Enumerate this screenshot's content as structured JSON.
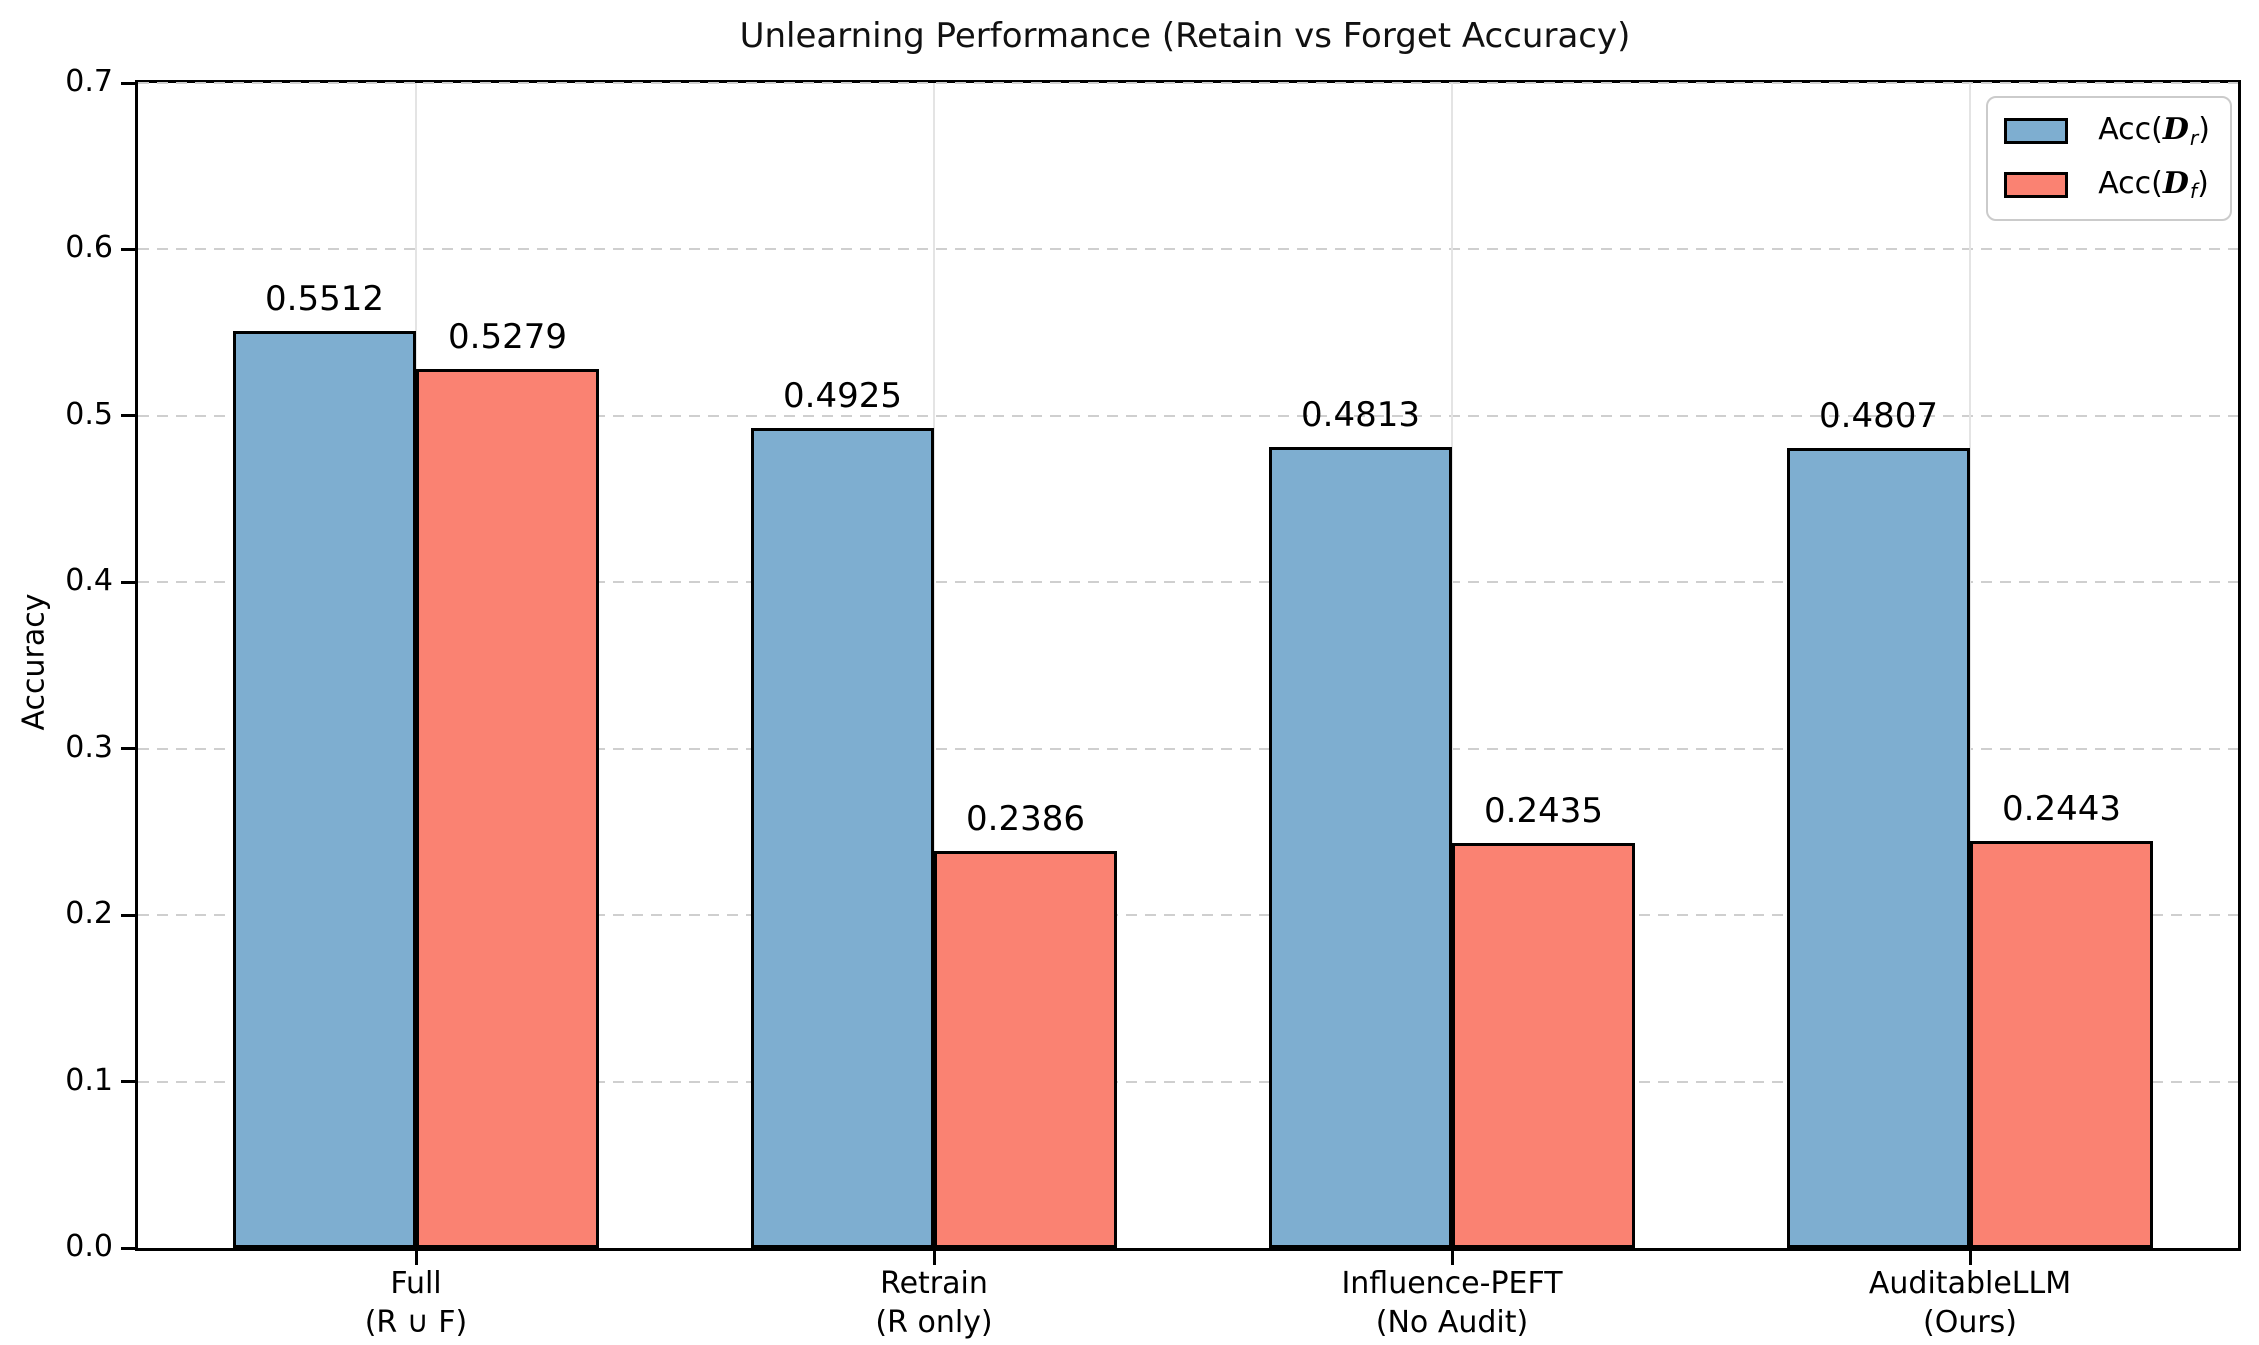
{
  "chart_data": {
    "type": "bar",
    "title": "Unlearning Performance (Retain vs Forget Accuracy)",
    "xlabel": "",
    "ylabel": "Accuracy",
    "ylim": [
      0.0,
      0.7
    ],
    "yticks": [
      "0.0",
      "0.1",
      "0.2",
      "0.3",
      "0.4",
      "0.5",
      "0.6",
      "0.7"
    ],
    "grid": {
      "horizontal_style": "dashed",
      "horizontal_color": "#cfcfcf",
      "vertical_style": "solid",
      "vertical_color": "#e4e4e4"
    },
    "legend_position": "upper right",
    "categories": [
      {
        "line1": "Full",
        "line2": "(R ∪ F)"
      },
      {
        "line1": "Retrain",
        "line2": "(R only)"
      },
      {
        "line1": "Influence-PEFT",
        "line2": "(No Audit)"
      },
      {
        "line1": "AuditableLLM",
        "line2": "(Ours)"
      }
    ],
    "series": [
      {
        "name": "Acc(D_r)",
        "legend": {
          "prefix": "Acc(",
          "symbol": "D",
          "sub": "r",
          "suffix": ")"
        },
        "color": "#7EAED0",
        "edge_color": "#000000",
        "values": [
          0.5512,
          0.4925,
          0.4813,
          0.4807
        ],
        "value_labels": [
          "0.5512",
          "0.4925",
          "0.4813",
          "0.4807"
        ]
      },
      {
        "name": "Acc(D_f)",
        "legend": {
          "prefix": "Acc(",
          "symbol": "D",
          "sub": "f",
          "suffix": ")"
        },
        "color": "#FA8272",
        "edge_color": "#000000",
        "values": [
          0.5279,
          0.2386,
          0.2435,
          0.2443
        ],
        "value_labels": [
          "0.5279",
          "0.2386",
          "0.2435",
          "0.2443"
        ]
      }
    ]
  }
}
